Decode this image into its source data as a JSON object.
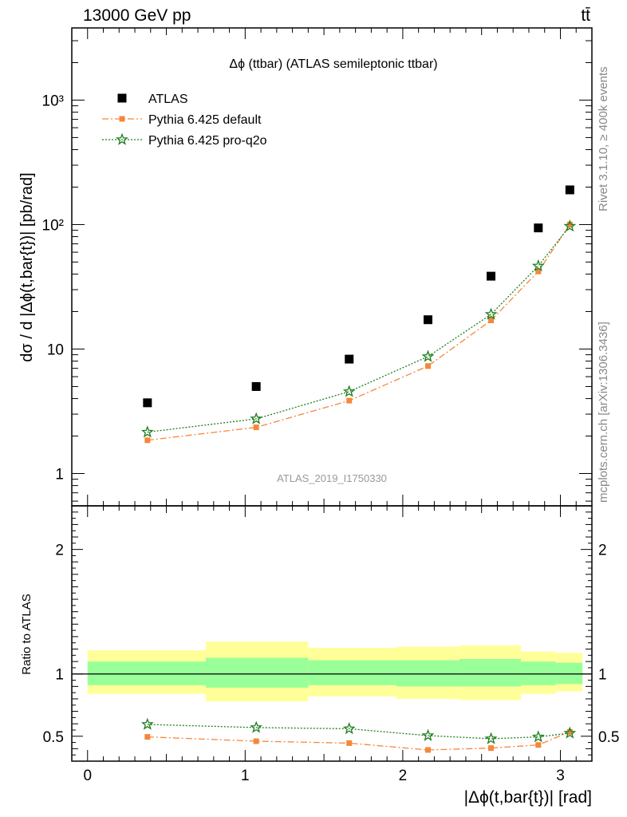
{
  "header": {
    "left": "13000 GeV pp",
    "right": "tt̄"
  },
  "side_labels": {
    "rivet": "Rivet 3.1.10, ≥ 400k events",
    "mcplots": "mcplots.cern.ch [arXiv:1306.3436]"
  },
  "watermark": "ATLAS_2019_I1750330",
  "colors": {
    "atlas": "#000000",
    "default": "#f5873a",
    "pro_q2o": "#1f7d1f",
    "band_outer": "#ffff99",
    "band_inner": "#99ff99"
  },
  "chart_data": [
    {
      "type": "scatter",
      "title": "Δϕ (ttbar) (ATLAS semileptonic ttbar)",
      "ylabel": "dσ / d |Δϕ(t,bar{t})| [pb/rad]",
      "xlabel": "",
      "xlim": [
        -0.1,
        3.2
      ],
      "ylim": [
        0.55,
        3800
      ],
      "yscale": "log",
      "ytick_labels": [
        "1",
        "10",
        "10²",
        "10³"
      ],
      "legend_position": "top-left",
      "x": [
        0.38,
        1.07,
        1.66,
        2.16,
        2.56,
        2.86,
        3.06
      ],
      "series": [
        {
          "name": "ATLAS",
          "marker": "square",
          "values": [
            3.7,
            5.0,
            8.3,
            17.2,
            38.5,
            94,
            190
          ]
        },
        {
          "name": "Pythia 6.425 default",
          "marker": "square",
          "line": "dash-dot",
          "values": [
            1.85,
            2.35,
            3.85,
            7.3,
            17.0,
            42,
            100
          ]
        },
        {
          "name": "Pythia 6.425 pro-q2o",
          "marker": "star",
          "line": "dotted",
          "values": [
            2.15,
            2.75,
            4.55,
            8.7,
            19.0,
            46.5,
            97
          ]
        }
      ]
    },
    {
      "type": "line",
      "title": "",
      "ylabel": "Ratio to ATLAS",
      "xlabel": "|Δϕ(t,bar{t})| [rad]",
      "xlim": [
        -0.1,
        3.2
      ],
      "ylim": [
        0.3,
        2.35
      ],
      "x_ticks": [
        "0",
        "1",
        "2",
        "3"
      ],
      "y_ticks": [
        "0.5",
        "1",
        "2"
      ],
      "x": [
        0.38,
        1.07,
        1.66,
        2.16,
        2.56,
        2.86,
        3.06
      ],
      "bins": [
        0.0,
        0.75,
        1.4,
        1.96,
        2.36,
        2.75,
        2.97,
        3.14
      ],
      "uncertainty_bands": {
        "outer": [
          [
            0.84,
            1.19
          ],
          [
            0.78,
            1.26
          ],
          [
            0.82,
            1.21
          ],
          [
            0.8,
            1.22
          ],
          [
            0.79,
            1.23
          ],
          [
            0.84,
            1.18
          ],
          [
            0.86,
            1.17
          ]
        ],
        "inner": [
          [
            0.91,
            1.1
          ],
          [
            0.89,
            1.13
          ],
          [
            0.91,
            1.11
          ],
          [
            0.9,
            1.11
          ],
          [
            0.9,
            1.12
          ],
          [
            0.91,
            1.1
          ],
          [
            0.92,
            1.09
          ]
        ]
      },
      "series": [
        {
          "name": "Pythia 6.425 default",
          "values": [
            0.495,
            0.46,
            0.445,
            0.39,
            0.405,
            0.43,
            0.535
          ]
        },
        {
          "name": "Pythia 6.425 pro-q2o",
          "values": [
            0.595,
            0.57,
            0.56,
            0.505,
            0.48,
            0.495,
            0.525
          ]
        }
      ]
    }
  ]
}
